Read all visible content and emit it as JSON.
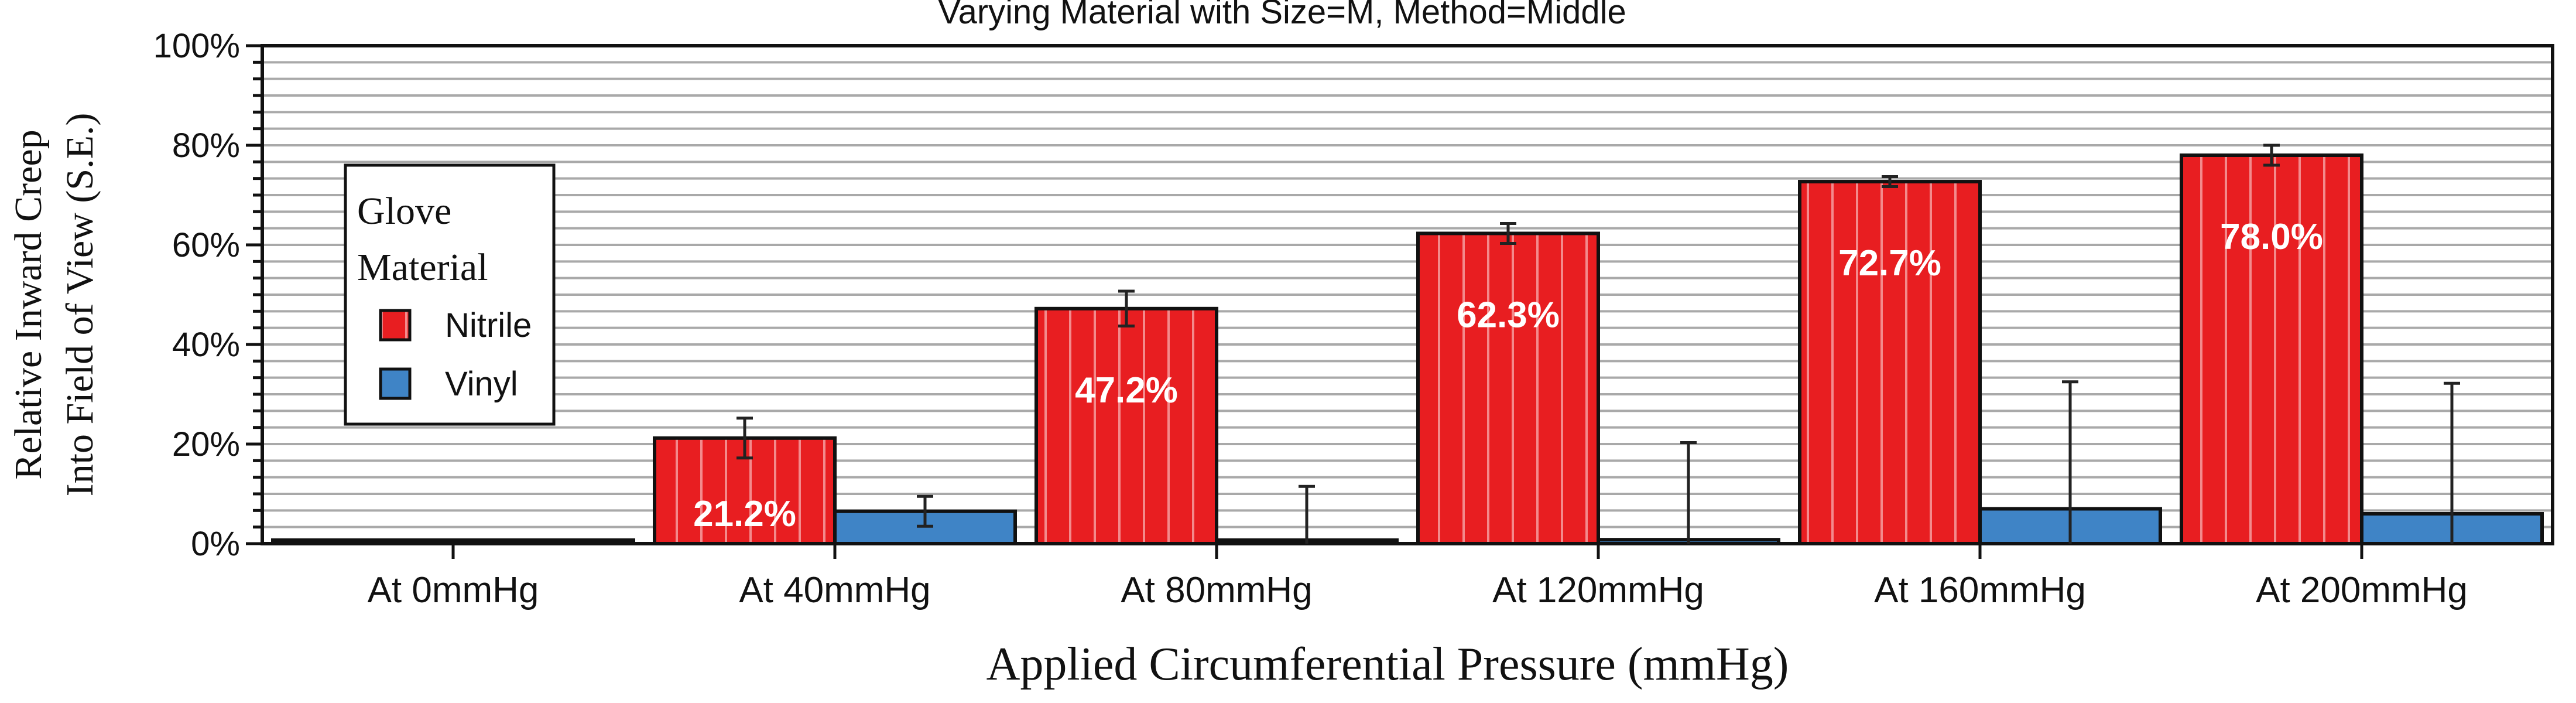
{
  "chart_data": {
    "type": "bar",
    "title": "Varying Material with Size=M, Method=Middle",
    "xlabel": "Applied Circumferential Pressure (mmHg)",
    "ylabel_lines": [
      "Relative Inward Creep",
      "Into Field of View (S.E.)"
    ],
    "ylim": [
      0,
      100
    ],
    "y_ticks": [
      {
        "value": 0,
        "label": "0%"
      },
      {
        "value": 20,
        "label": "20%"
      },
      {
        "value": 40,
        "label": "40%"
      },
      {
        "value": 60,
        "label": "60%"
      },
      {
        "value": 80,
        "label": "80%"
      },
      {
        "value": 100,
        "label": "100%"
      }
    ],
    "grid": true,
    "legend": {
      "title_lines": [
        "Glove",
        "Material"
      ],
      "position": "top-left"
    },
    "categories": [
      "At 0mmHg",
      "At 40mmHg",
      "At 80mmHg",
      "At 120mmHg",
      "At 160mmHg",
      "At 200mmHg"
    ],
    "series": [
      {
        "name": "Nitrile",
        "color": "#e81e21",
        "values": [
          0,
          21.2,
          47.2,
          62.3,
          72.7,
          78.0
        ],
        "errors": [
          0,
          4,
          3.5,
          2,
          1,
          2
        ],
        "labels": [
          "",
          "21.2%",
          "47.2%",
          "62.3%",
          "72.7%",
          "78.0%"
        ]
      },
      {
        "name": "Vinyl",
        "color": "#3f84c6",
        "values": [
          0,
          6.5,
          0,
          0.8,
          7,
          6
        ],
        "errors": [
          0,
          3,
          11.5,
          19.5,
          25.5,
          26.2
        ],
        "labels": [
          "",
          "",
          "",
          "",
          "",
          ""
        ]
      }
    ]
  }
}
